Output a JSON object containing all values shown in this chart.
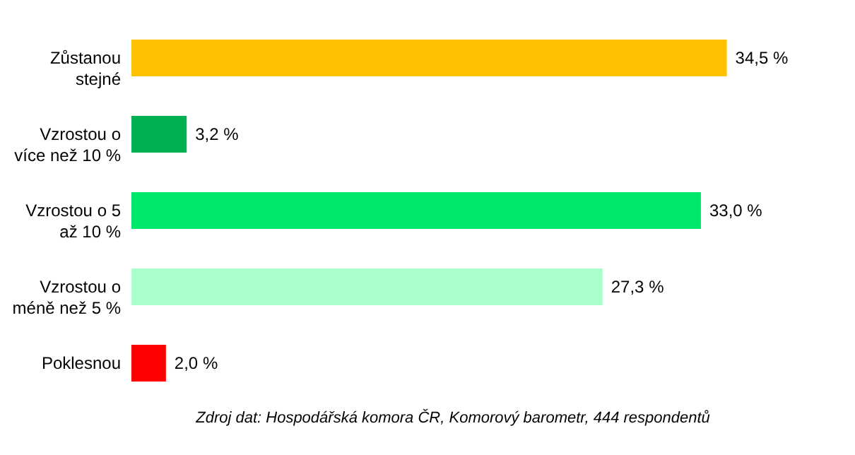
{
  "chart_data": {
    "type": "bar",
    "orientation": "horizontal",
    "categories": [
      "Zůstanou stejné",
      "Vzrostou o více než 10 %",
      "Vzrostou o 5 až 10 %",
      "Vzrostou o méně než 5 %",
      "Poklesnou"
    ],
    "values": [
      34.5,
      3.2,
      33.0,
      27.3,
      2.0
    ],
    "colors": [
      "#ffc000",
      "#00b050",
      "#00e86c",
      "#aaffcc",
      "#ff0000"
    ],
    "value_labels": [
      "34,5 %",
      "3,2 %",
      "33,0 %",
      "27,3 %",
      "2,0 %"
    ],
    "annotations": [
      "Zdroj dat: Hospodářská komora ČR, Komorový barometr, 444 respondentů"
    ]
  }
}
